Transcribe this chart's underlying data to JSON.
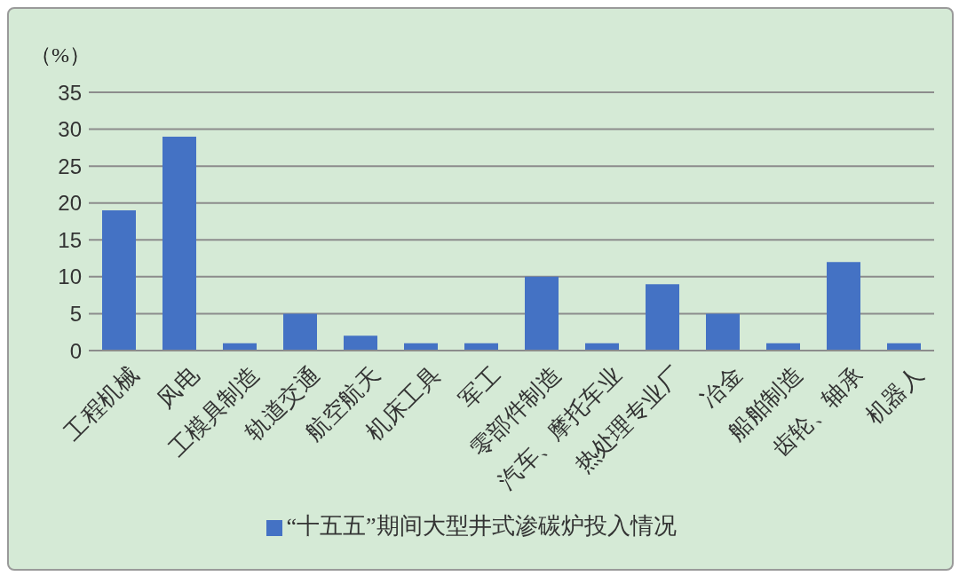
{
  "chart_data": {
    "type": "bar",
    "ylabel": "（%）",
    "categories": [
      "工程机械",
      "风电",
      "工模具制造",
      "轨道交通",
      "航空航天",
      "机床工具",
      "军工",
      "零部件制造",
      "汽车、摩托车业",
      "热处理专业厂",
      "冶金",
      "船舶制造",
      "齿轮、轴承",
      "机器人"
    ],
    "series": [
      {
        "name": "“十五五”期间大型井式渗碳炉投入情况",
        "color": "#4472c4",
        "values": [
          19,
          29,
          1,
          5,
          2,
          1,
          1,
          10,
          1,
          9,
          5,
          1,
          12,
          1
        ]
      }
    ],
    "ylim": [
      0,
      35
    ],
    "yticks": [
      0,
      5,
      10,
      15,
      20,
      25,
      30,
      35
    ],
    "grid": "y",
    "legend": "bottom"
  }
}
